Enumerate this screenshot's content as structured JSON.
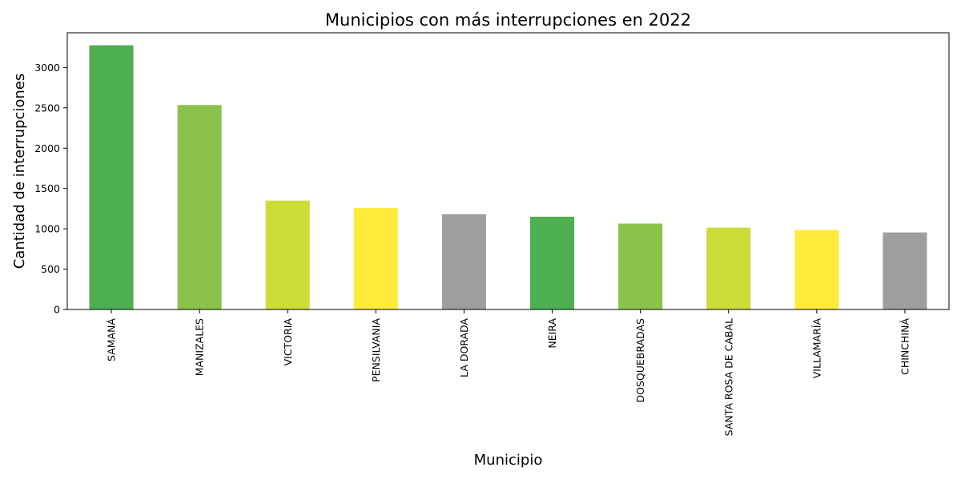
{
  "chart_data": {
    "type": "bar",
    "title": "Municipios con más interrupciones en 2022",
    "xlabel": "Municipio",
    "ylabel": "Cantidad de interrupciones",
    "categories": [
      "SAMANÁ",
      "MANIZALES",
      "VICTORIA",
      "PENSILVANIA",
      "LA DORADA",
      "NEIRA",
      "DOSQUEBRADAS",
      "SANTA ROSA DE CABAL",
      "VILLAMARÍA",
      "CHINCHINÁ"
    ],
    "values": [
      3275,
      2535,
      1350,
      1260,
      1180,
      1150,
      1065,
      1015,
      985,
      955
    ],
    "colors": [
      "#4caf50",
      "#8bc34a",
      "#cddc39",
      "#ffeb3b",
      "#9e9e9e",
      "#4caf50",
      "#8bc34a",
      "#cddc39",
      "#ffeb3b",
      "#9e9e9e"
    ],
    "ylim": [
      0,
      3430
    ],
    "yticks": [
      0,
      500,
      1000,
      1500,
      2000,
      2500,
      3000
    ],
    "grid": false,
    "legend": false
  }
}
